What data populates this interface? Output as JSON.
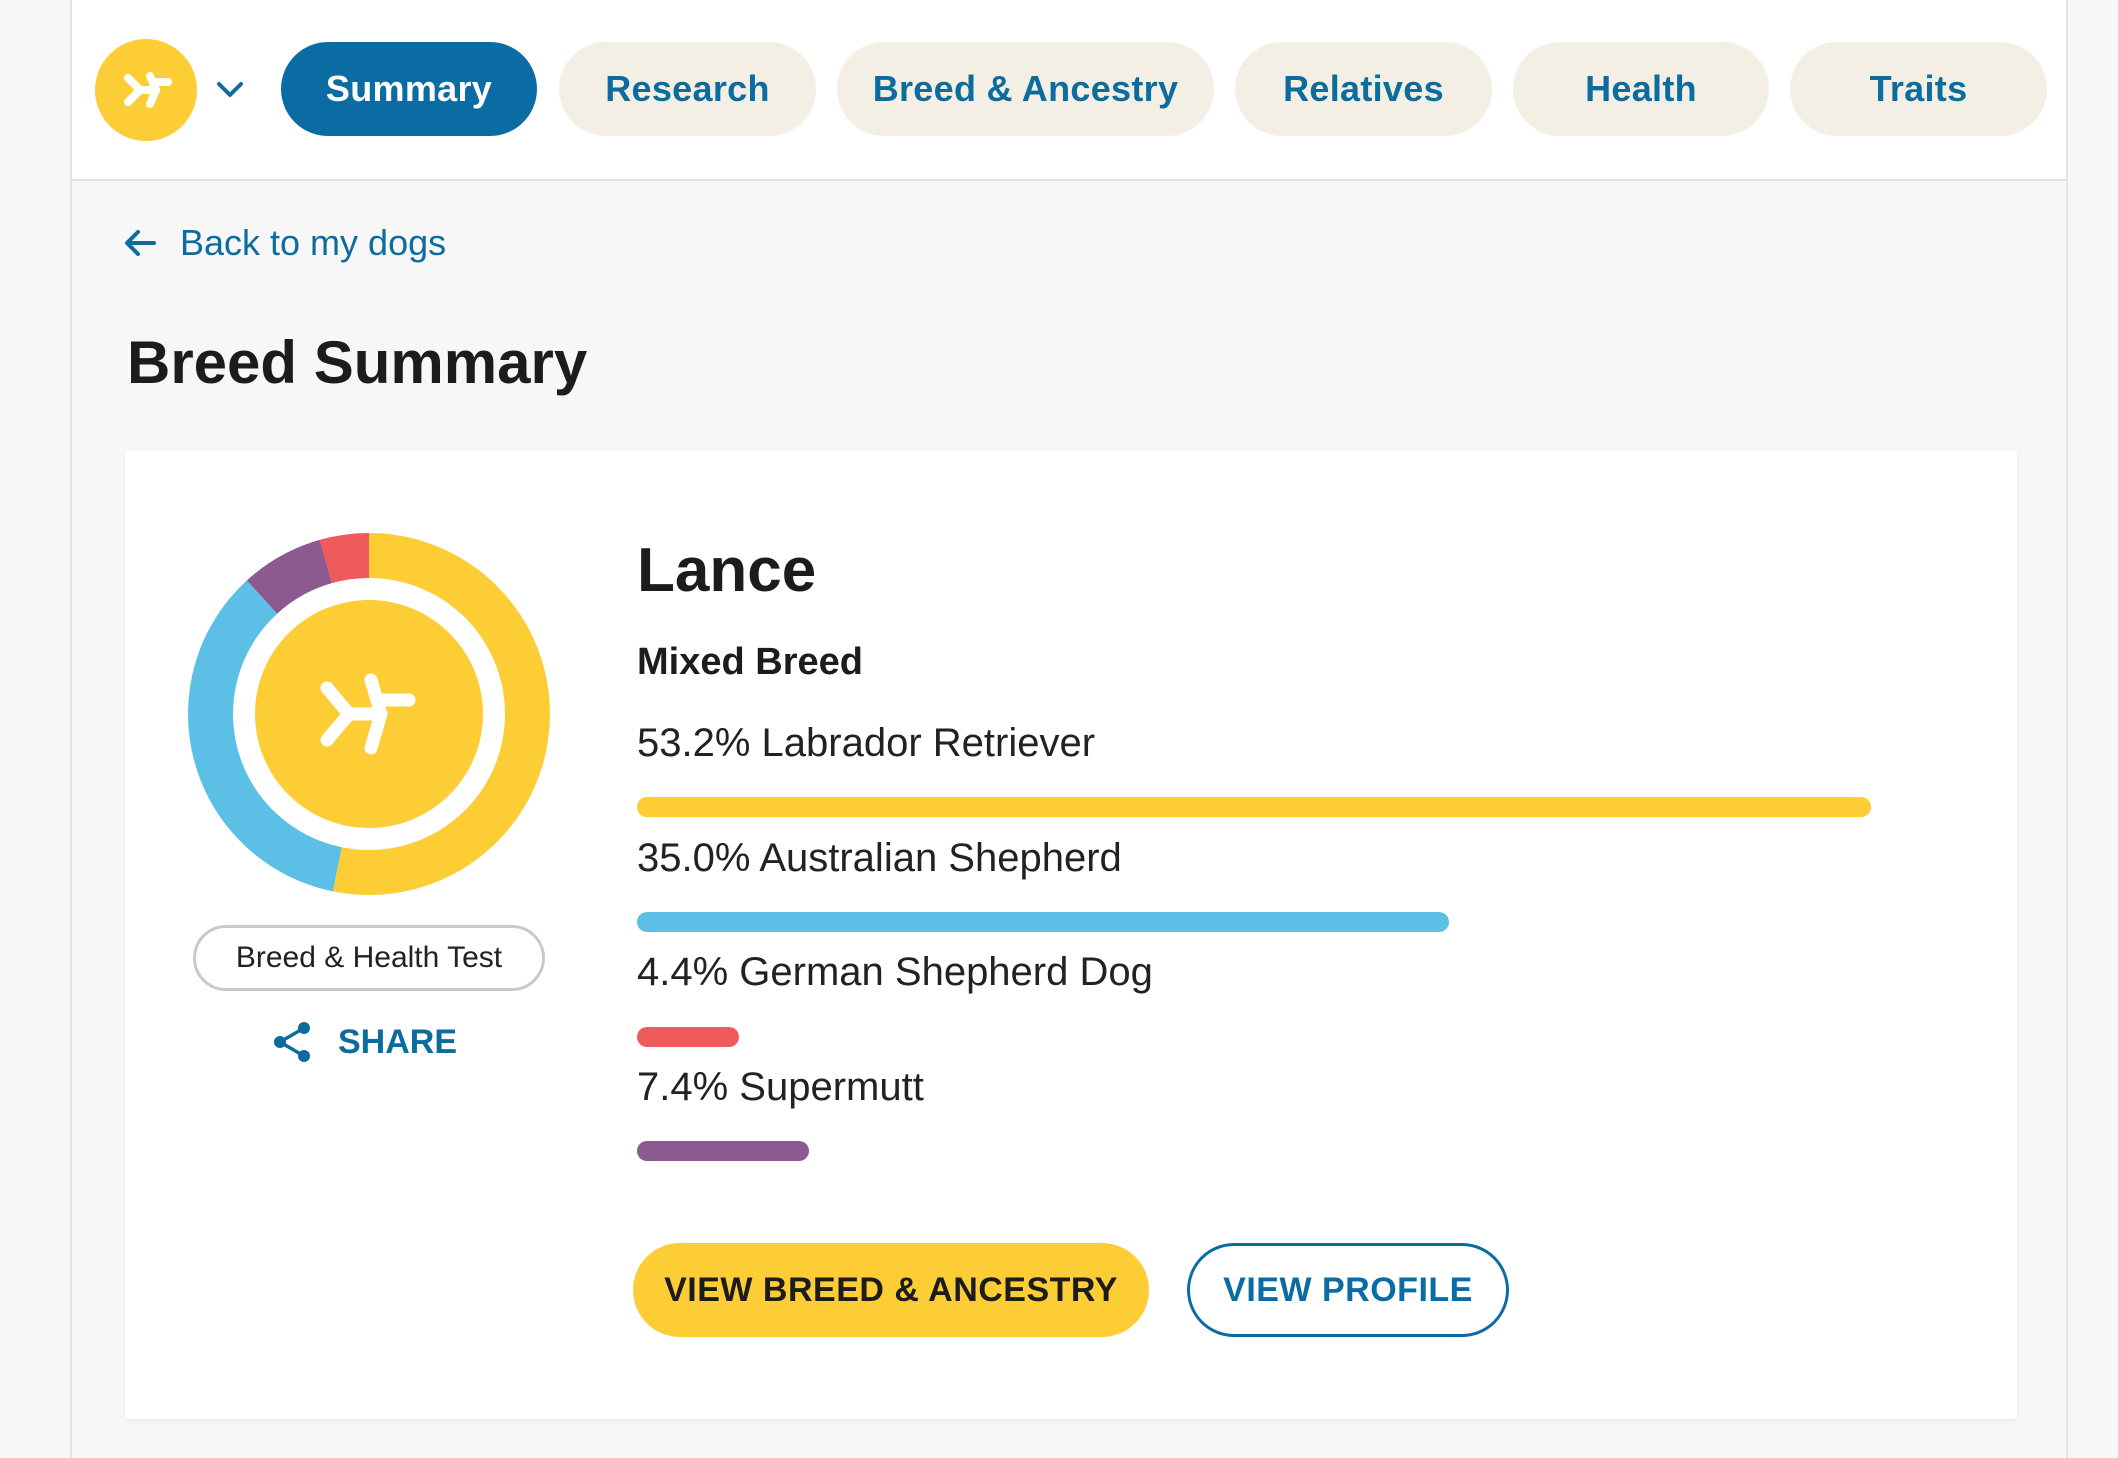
{
  "nav": {
    "tabs": [
      {
        "label": "Summary",
        "active": true
      },
      {
        "label": "Research",
        "active": false
      },
      {
        "label": "Breed & Ancestry",
        "active": false
      },
      {
        "label": "Relatives",
        "active": false
      },
      {
        "label": "Health",
        "active": false
      },
      {
        "label": "Traits",
        "active": false
      }
    ],
    "logo_icon": "embark-logo-icon",
    "dropdown_icon": "chevron-down-icon"
  },
  "back_link": {
    "label": "Back to my dogs",
    "icon": "arrow-left-icon"
  },
  "page_title": "Breed Summary",
  "dog": {
    "name": "Lance",
    "breed_type": "Mixed Breed",
    "test_badge": "Breed & Health Test",
    "share_label": "SHARE",
    "breeds": [
      {
        "label": "53.2% Labrador Retriever",
        "percent": 53.2,
        "color": "#fdcd35"
      },
      {
        "label": "35.0% Australian Shepherd",
        "percent": 35.0,
        "color": "#5bbfe6"
      },
      {
        "label": "4.4% German Shepherd Dog",
        "percent": 4.4,
        "color": "#ef5a5c"
      },
      {
        "label": "7.4% Supermutt",
        "percent": 7.4,
        "color": "#8c5a8f"
      }
    ]
  },
  "buttons": {
    "view_breed": "VIEW BREED & ANCESTRY",
    "view_profile": "VIEW PROFILE"
  },
  "colors": {
    "brand_yellow": "#fdcd35",
    "brand_blue": "#0a6ca3",
    "tab_bg": "#f3efe4"
  }
}
